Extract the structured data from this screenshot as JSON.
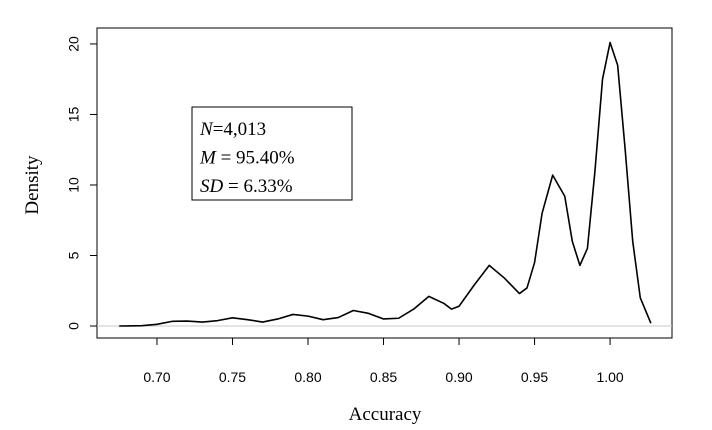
{
  "chart_data": {
    "type": "line",
    "x_label": "Accuracy",
    "y_label": "Density",
    "annotations": [
      {
        "symbol": "N",
        "text": "=4,013"
      },
      {
        "symbol": "M",
        "text": " = 95.40%"
      },
      {
        "symbol": "SD",
        "text": " = 6.33%"
      }
    ],
    "x": [
      0.675,
      0.69,
      0.7,
      0.71,
      0.72,
      0.73,
      0.74,
      0.75,
      0.76,
      0.77,
      0.78,
      0.79,
      0.8,
      0.81,
      0.82,
      0.83,
      0.84,
      0.85,
      0.86,
      0.87,
      0.88,
      0.89,
      0.895,
      0.9,
      0.91,
      0.92,
      0.93,
      0.94,
      0.945,
      0.95,
      0.955,
      0.962,
      0.97,
      0.975,
      0.98,
      0.985,
      0.99,
      0.995,
      1.0,
      1.005,
      1.01,
      1.015,
      1.02,
      1.027
    ],
    "series": [
      {
        "color": "#000000",
        "values": [
          0,
          0.02,
          0.12,
          0.33,
          0.35,
          0.28,
          0.38,
          0.58,
          0.45,
          0.28,
          0.5,
          0.82,
          0.7,
          0.45,
          0.6,
          1.1,
          0.9,
          0.5,
          0.55,
          1.2,
          2.1,
          1.6,
          1.2,
          1.4,
          2.9,
          4.3,
          3.4,
          2.3,
          2.7,
          4.5,
          8.0,
          10.7,
          9.2,
          6.0,
          4.3,
          5.5,
          11.0,
          17.5,
          20.1,
          18.5,
          12.5,
          6.0,
          2.0,
          0.2
        ]
      }
    ],
    "xlim": [
      0.6603,
      1.041
    ],
    "ylim": [
      -0.85,
      21.13
    ],
    "xticks": [
      {
        "value": 0.7,
        "label": "0.70"
      },
      0.75,
      {
        "value": 0.8,
        "label": "0.80"
      },
      0.85,
      {
        "value": 0.9,
        "label": "0.90"
      },
      0.95,
      {
        "value": 1.0,
        "label": "1.00"
      }
    ],
    "yticks": [
      0,
      5,
      10,
      15,
      20
    ],
    "zero_line": true,
    "zero_line_color": "#c8c8c8"
  }
}
